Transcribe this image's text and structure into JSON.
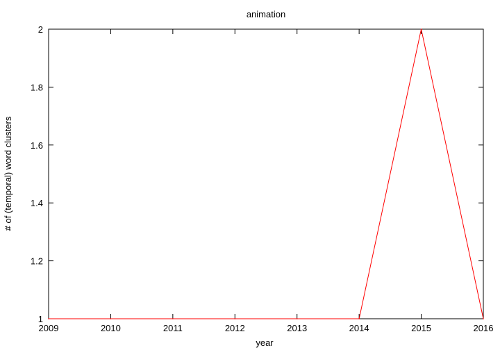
{
  "chart_data": {
    "type": "line",
    "title": "animation",
    "xlabel": "year",
    "ylabel": "# of (temporal) word clusters",
    "x": [
      2009,
      2010,
      2011,
      2012,
      2013,
      2014,
      2015,
      2016
    ],
    "series": [
      {
        "values": [
          1,
          1,
          1,
          1,
          1,
          1,
          2,
          1
        ],
        "color": "#ff0000"
      }
    ],
    "xlim": [
      2009,
      2016
    ],
    "ylim": [
      1,
      2
    ],
    "xticks": [
      "2009",
      "2010",
      "2011",
      "2012",
      "2013",
      "2014",
      "2015",
      "2016"
    ],
    "yticks": [
      "1",
      "1.2",
      "1.4",
      "1.6",
      "1.8",
      "2"
    ],
    "grid": false,
    "legend": "none"
  }
}
